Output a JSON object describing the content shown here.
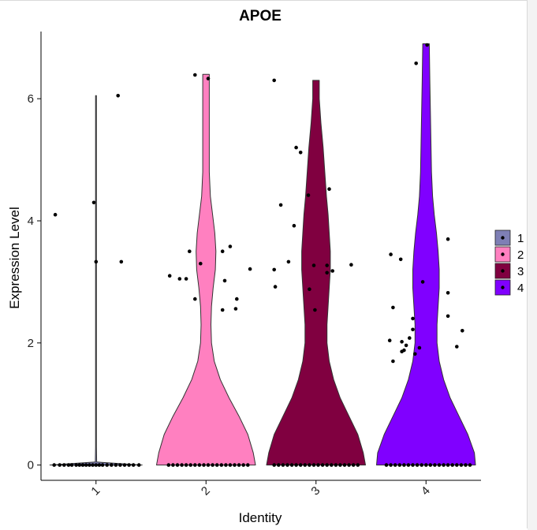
{
  "chart_data": {
    "type": "violin",
    "title": "APOE",
    "xlabel": "Identity",
    "ylabel": "Expression Level",
    "categories": [
      "1",
      "2",
      "3",
      "4"
    ],
    "ylim": [
      -0.25,
      7.1
    ],
    "yticks": [
      0,
      2,
      4,
      6
    ],
    "grid": false,
    "legend": {
      "position": "right",
      "entries": [
        {
          "label": "1",
          "color": "#7E7FB5"
        },
        {
          "label": "2",
          "color": "#FF80C0"
        },
        {
          "label": "3",
          "color": "#800040"
        },
        {
          "label": "4",
          "color": "#8000FF"
        }
      ]
    },
    "violins": [
      {
        "category": "1",
        "color": "#7E7FB5",
        "profile": [
          [
            0,
            0.42
          ],
          [
            0.05,
            0.006
          ],
          [
            0.3,
            0.004
          ],
          [
            3.0,
            0.004
          ],
          [
            6.05,
            0.004
          ]
        ],
        "points": [
          [
            -0.38,
            0
          ],
          [
            -0.33,
            0
          ],
          [
            -0.29,
            0
          ],
          [
            -0.25,
            0
          ],
          [
            -0.22,
            0
          ],
          [
            -0.18,
            0
          ],
          [
            -0.15,
            0
          ],
          [
            -0.12,
            0
          ],
          [
            -0.09,
            0
          ],
          [
            -0.06,
            0
          ],
          [
            -0.03,
            0
          ],
          [
            0,
            0
          ],
          [
            0.03,
            0
          ],
          [
            0.06,
            0
          ],
          [
            0.1,
            0
          ],
          [
            0.14,
            0
          ],
          [
            0.18,
            0
          ],
          [
            0.22,
            0
          ],
          [
            0.26,
            0
          ],
          [
            0.3,
            0
          ],
          [
            0.34,
            0
          ],
          [
            0.39,
            0
          ],
          [
            -0.37,
            4.1
          ],
          [
            -0.02,
            4.3
          ],
          [
            0.0,
            3.33
          ],
          [
            0.2,
            6.05
          ],
          [
            0.23,
            3.33
          ]
        ]
      },
      {
        "category": "2",
        "color": "#FF80C0",
        "profile": [
          [
            0,
            0.45
          ],
          [
            0.2,
            0.43
          ],
          [
            0.5,
            0.38
          ],
          [
            0.8,
            0.3
          ],
          [
            1.1,
            0.21
          ],
          [
            1.4,
            0.13
          ],
          [
            1.7,
            0.075
          ],
          [
            2.0,
            0.05
          ],
          [
            2.3,
            0.045
          ],
          [
            2.6,
            0.05
          ],
          [
            2.9,
            0.065
          ],
          [
            3.2,
            0.085
          ],
          [
            3.5,
            0.09
          ],
          [
            3.8,
            0.08
          ],
          [
            4.1,
            0.06
          ],
          [
            4.4,
            0.04
          ],
          [
            4.8,
            0.03
          ],
          [
            5.3,
            0.03
          ],
          [
            5.8,
            0.03
          ],
          [
            6.4,
            0.03
          ]
        ],
        "points": [
          [
            -0.34,
            0
          ],
          [
            -0.3,
            0
          ],
          [
            -0.26,
            0
          ],
          [
            -0.22,
            0
          ],
          [
            -0.18,
            0
          ],
          [
            -0.14,
            0
          ],
          [
            -0.1,
            0
          ],
          [
            -0.06,
            0
          ],
          [
            -0.02,
            0
          ],
          [
            0.02,
            0
          ],
          [
            0.06,
            0
          ],
          [
            0.1,
            0
          ],
          [
            0.14,
            0
          ],
          [
            0.18,
            0
          ],
          [
            0.22,
            0
          ],
          [
            0.26,
            0
          ],
          [
            0.3,
            0
          ],
          [
            0.34,
            0
          ],
          [
            0.38,
            0
          ],
          [
            -0.33,
            3.1
          ],
          [
            -0.24,
            3.05
          ],
          [
            -0.18,
            3.05
          ],
          [
            -0.15,
            3.5
          ],
          [
            -0.1,
            2.72
          ],
          [
            -0.05,
            3.3
          ],
          [
            0.15,
            3.5
          ],
          [
            0.17,
            3.02
          ],
          [
            0.22,
            3.58
          ],
          [
            0.15,
            2.54
          ],
          [
            0.27,
            2.56
          ],
          [
            0.28,
            2.72
          ],
          [
            0.4,
            3.21
          ],
          [
            -0.1,
            6.39
          ],
          [
            0.02,
            6.33
          ]
        ]
      },
      {
        "category": "3",
        "color": "#800040",
        "profile": [
          [
            0,
            0.45
          ],
          [
            0.2,
            0.43
          ],
          [
            0.5,
            0.38
          ],
          [
            0.8,
            0.3
          ],
          [
            1.1,
            0.22
          ],
          [
            1.4,
            0.16
          ],
          [
            1.7,
            0.12
          ],
          [
            2.0,
            0.1
          ],
          [
            2.3,
            0.1
          ],
          [
            2.6,
            0.11
          ],
          [
            2.9,
            0.12
          ],
          [
            3.2,
            0.13
          ],
          [
            3.5,
            0.13
          ],
          [
            3.8,
            0.12
          ],
          [
            4.1,
            0.11
          ],
          [
            4.4,
            0.095
          ],
          [
            4.8,
            0.08
          ],
          [
            5.2,
            0.065
          ],
          [
            5.6,
            0.045
          ],
          [
            6.0,
            0.03
          ],
          [
            6.3,
            0.03
          ]
        ],
        "points": [
          [
            -0.38,
            0
          ],
          [
            -0.34,
            0
          ],
          [
            -0.3,
            0
          ],
          [
            -0.26,
            0
          ],
          [
            -0.22,
            0
          ],
          [
            -0.18,
            0
          ],
          [
            -0.14,
            0
          ],
          [
            -0.1,
            0
          ],
          [
            -0.06,
            0
          ],
          [
            -0.02,
            0
          ],
          [
            0.02,
            0
          ],
          [
            0.06,
            0
          ],
          [
            0.1,
            0
          ],
          [
            0.14,
            0
          ],
          [
            0.18,
            0
          ],
          [
            0.22,
            0
          ],
          [
            0.26,
            0
          ],
          [
            0.3,
            0
          ],
          [
            0.34,
            0
          ],
          [
            0.38,
            0
          ],
          [
            -0.38,
            6.3
          ],
          [
            -0.32,
            4.26
          ],
          [
            -0.38,
            3.2
          ],
          [
            -0.37,
            2.92
          ],
          [
            -0.25,
            3.33
          ],
          [
            -0.2,
            3.92
          ],
          [
            -0.18,
            5.2
          ],
          [
            -0.14,
            5.12
          ],
          [
            -0.07,
            4.42
          ],
          [
            -0.06,
            2.88
          ],
          [
            -0.02,
            3.27
          ],
          [
            -0.01,
            2.54
          ],
          [
            0.1,
            3.27
          ],
          [
            0.1,
            3.15
          ],
          [
            0.12,
            4.52
          ],
          [
            0.15,
            3.18
          ],
          [
            0.32,
            3.28
          ]
        ]
      },
      {
        "category": "4",
        "color": "#8000FF",
        "profile": [
          [
            0,
            0.45
          ],
          [
            0.2,
            0.44
          ],
          [
            0.5,
            0.38
          ],
          [
            0.8,
            0.3
          ],
          [
            1.1,
            0.22
          ],
          [
            1.4,
            0.16
          ],
          [
            1.7,
            0.12
          ],
          [
            2.0,
            0.1
          ],
          [
            2.3,
            0.1
          ],
          [
            2.6,
            0.11
          ],
          [
            2.9,
            0.12
          ],
          [
            3.2,
            0.12
          ],
          [
            3.5,
            0.11
          ],
          [
            3.8,
            0.095
          ],
          [
            4.1,
            0.075
          ],
          [
            4.4,
            0.06
          ],
          [
            4.8,
            0.05
          ],
          [
            5.3,
            0.045
          ],
          [
            5.8,
            0.04
          ],
          [
            6.3,
            0.035
          ],
          [
            6.9,
            0.03
          ]
        ],
        "points": [
          [
            -0.36,
            0
          ],
          [
            -0.32,
            0
          ],
          [
            -0.28,
            0
          ],
          [
            -0.24,
            0
          ],
          [
            -0.2,
            0
          ],
          [
            -0.16,
            0
          ],
          [
            -0.12,
            0
          ],
          [
            -0.08,
            0
          ],
          [
            -0.04,
            0
          ],
          [
            0,
            0
          ],
          [
            0.04,
            0
          ],
          [
            0.08,
            0
          ],
          [
            0.12,
            0
          ],
          [
            0.16,
            0
          ],
          [
            0.2,
            0
          ],
          [
            0.24,
            0
          ],
          [
            0.28,
            0
          ],
          [
            0.32,
            0
          ],
          [
            0.36,
            0
          ],
          [
            0.4,
            0
          ],
          [
            -0.32,
            3.45
          ],
          [
            -0.23,
            3.37
          ],
          [
            -0.33,
            2.04
          ],
          [
            -0.3,
            2.58
          ],
          [
            -0.3,
            1.7
          ],
          [
            -0.22,
            2.02
          ],
          [
            -0.22,
            1.86
          ],
          [
            -0.2,
            1.88
          ],
          [
            -0.18,
            1.96
          ],
          [
            -0.15,
            2.08
          ],
          [
            -0.12,
            2.22
          ],
          [
            -0.12,
            2.4
          ],
          [
            -0.1,
            1.82
          ],
          [
            -0.06,
            1.92
          ],
          [
            -0.03,
            3.0
          ],
          [
            0.2,
            3.7
          ],
          [
            0.2,
            2.82
          ],
          [
            0.2,
            2.44
          ],
          [
            0.28,
            1.94
          ],
          [
            0.33,
            2.2
          ],
          [
            -0.09,
            6.58
          ],
          [
            0.01,
            6.88
          ]
        ]
      }
    ]
  }
}
